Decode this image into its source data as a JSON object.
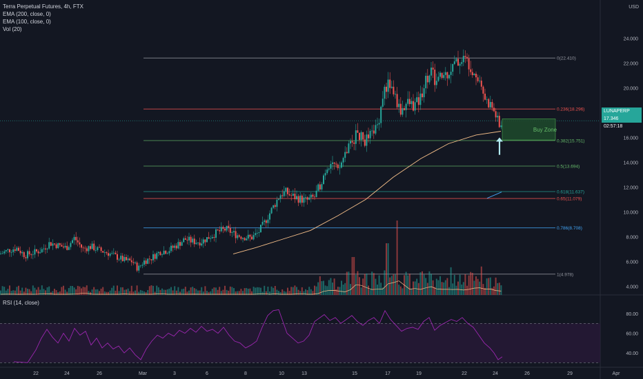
{
  "header": {
    "symbol_line": "Terra Perpetual Futures, 4h, FTX",
    "indicators": [
      "EMA (200, close, 0)",
      "EMA (100, close, 0)",
      "Vol (20)"
    ],
    "rsi_label": "RSI (14, close)",
    "currency": "USD"
  },
  "price_tag": {
    "symbol": "LUNAPERP",
    "price": "17.346",
    "countdown": "02:57:18",
    "color": "#26a69a"
  },
  "colors": {
    "up": "#26a69a",
    "down": "#ef5350",
    "ema": "#f7c08a",
    "rsi_line": "#9c27b0",
    "rsi_band": "#2a1a3a",
    "buy_zone": "#1e4a2c"
  },
  "chart_data": [
    {
      "type": "line",
      "title": "Terra Perpetual Futures, 4h, FTX",
      "x_ticks": [
        "22",
        "24",
        "26",
        "Mar",
        "3",
        "6",
        "8",
        "10",
        "13",
        "15",
        "17",
        "19",
        "22",
        "24",
        "26",
        "29",
        "Apr"
      ],
      "y_ticks": [
        4.0,
        6.0,
        8.0,
        10.0,
        12.0,
        14.0,
        16.0,
        18.0,
        20.0,
        22.0,
        24.0
      ],
      "ylim": [
        3.3,
        25.7
      ],
      "price_path": [
        [
          0,
          6.6
        ],
        [
          12,
          6.9
        ],
        [
          24,
          7.1
        ],
        [
          36,
          6.5
        ],
        [
          48,
          6.7
        ],
        [
          60,
          6.9
        ],
        [
          72,
          7.5
        ],
        [
          84,
          7.3
        ],
        [
          96,
          7.1
        ],
        [
          108,
          7.9
        ],
        [
          120,
          7.0
        ],
        [
          132,
          7.2
        ],
        [
          144,
          6.9
        ],
        [
          156,
          6.7
        ],
        [
          168,
          6.4
        ],
        [
          180,
          6.1
        ],
        [
          192,
          6.0
        ],
        [
          200,
          5.4
        ],
        [
          208,
          6.0
        ],
        [
          220,
          6.3
        ],
        [
          232,
          6.8
        ],
        [
          244,
          6.9
        ],
        [
          256,
          7.3
        ],
        [
          268,
          7.8
        ],
        [
          280,
          7.6
        ],
        [
          292,
          7.6
        ],
        [
          304,
          8.0
        ],
        [
          316,
          8.4
        ],
        [
          328,
          8.6
        ],
        [
          340,
          8.2
        ],
        [
          352,
          8.0
        ],
        [
          364,
          7.9
        ],
        [
          374,
          8.3
        ],
        [
          382,
          9.0
        ],
        [
          390,
          9.8
        ],
        [
          398,
          10.6
        ],
        [
          406,
          11.4
        ],
        [
          414,
          11.6
        ],
        [
          422,
          11.3
        ],
        [
          432,
          11.1
        ],
        [
          444,
          10.9
        ],
        [
          456,
          11.2
        ],
        [
          464,
          12.2
        ],
        [
          472,
          13.4
        ],
        [
          480,
          14.2
        ],
        [
          490,
          13.2
        ],
        [
          500,
          14.7
        ],
        [
          510,
          15.6
        ],
        [
          518,
          16.4
        ],
        [
          528,
          15.7
        ],
        [
          538,
          16.2
        ],
        [
          548,
          17.1
        ],
        [
          556,
          19.8
        ],
        [
          564,
          20.4
        ],
        [
          572,
          19.4
        ],
        [
          580,
          18.1
        ],
        [
          590,
          18.8
        ],
        [
          600,
          18.6
        ],
        [
          608,
          19.0
        ],
        [
          616,
          20.5
        ],
        [
          624,
          21.5
        ],
        [
          632,
          20.4
        ],
        [
          640,
          20.9
        ],
        [
          648,
          21.2
        ],
        [
          656,
          21.7
        ],
        [
          664,
          22.1
        ],
        [
          672,
          22.4
        ],
        [
          680,
          22.0
        ],
        [
          688,
          21.3
        ],
        [
          696,
          20.5
        ],
        [
          704,
          19.0
        ],
        [
          712,
          18.6
        ],
        [
          720,
          17.6
        ],
        [
          724,
          16.7
        ],
        [
          728,
          17.35
        ]
      ],
      "ema_path": [
        [
          338,
          6.6
        ],
        [
          370,
          7.1
        ],
        [
          410,
          7.8
        ],
        [
          450,
          8.5
        ],
        [
          490,
          9.7
        ],
        [
          530,
          11.0
        ],
        [
          570,
          12.8
        ],
        [
          610,
          14.3
        ],
        [
          650,
          15.5
        ],
        [
          690,
          16.2
        ],
        [
          726,
          16.5
        ]
      ]
    },
    {
      "type": "table",
      "title": "Fibonacci retracement",
      "levels": [
        {
          "ratio": "0",
          "price": 22.41,
          "label": "0(22.410)",
          "color": "#9598a1"
        },
        {
          "ratio": "0.236",
          "price": 18.296,
          "label": "0.236(18.296)",
          "color": "#f05350"
        },
        {
          "ratio": "0.382",
          "price": 15.751,
          "label": "0.382(15.751)",
          "color": "#66bb6a"
        },
        {
          "ratio": "0.5",
          "price": 13.694,
          "label": "0.5(13.694)",
          "color": "#66bb6a"
        },
        {
          "ratio": "0.618",
          "price": 11.637,
          "label": "0.618(11.637)",
          "color": "#26a69a"
        },
        {
          "ratio": "0.65",
          "price": 11.079,
          "label": "0.65(11.079)",
          "color": "#f05350"
        },
        {
          "ratio": "0.786",
          "price": 8.708,
          "label": "0.786(8.708)",
          "color": "#42a5f5"
        },
        {
          "ratio": "1",
          "price": 4.978,
          "label": "1(4.978)",
          "color": "#9598a1"
        }
      ],
      "buy_zone": {
        "label": "Buy Zone",
        "top": 17.5,
        "bottom": 15.8
      }
    },
    {
      "type": "line",
      "title": "RSI (14, close)",
      "y_ticks": [
        40.0,
        60.0,
        80.0
      ],
      "ylim": [
        26,
        92
      ],
      "band": [
        30,
        70
      ],
      "rsi_path": [
        [
          20,
          31
        ],
        [
          40,
          30
        ],
        [
          52,
          43
        ],
        [
          60,
          55
        ],
        [
          68,
          64
        ],
        [
          76,
          56
        ],
        [
          84,
          50
        ],
        [
          92,
          60
        ],
        [
          100,
          52
        ],
        [
          108,
          65
        ],
        [
          116,
          58
        ],
        [
          124,
          62
        ],
        [
          132,
          48
        ],
        [
          140,
          55
        ],
        [
          148,
          45
        ],
        [
          156,
          50
        ],
        [
          164,
          44
        ],
        [
          172,
          47
        ],
        [
          180,
          40
        ],
        [
          188,
          45
        ],
        [
          196,
          38
        ],
        [
          204,
          33
        ],
        [
          212,
          44
        ],
        [
          220,
          52
        ],
        [
          228,
          58
        ],
        [
          236,
          55
        ],
        [
          244,
          60
        ],
        [
          252,
          57
        ],
        [
          260,
          63
        ],
        [
          268,
          60
        ],
        [
          276,
          65
        ],
        [
          284,
          61
        ],
        [
          292,
          67
        ],
        [
          300,
          62
        ],
        [
          308,
          64
        ],
        [
          316,
          60
        ],
        [
          324,
          66
        ],
        [
          332,
          58
        ],
        [
          340,
          52
        ],
        [
          348,
          50
        ],
        [
          356,
          45
        ],
        [
          364,
          48
        ],
        [
          372,
          52
        ],
        [
          380,
          66
        ],
        [
          388,
          78
        ],
        [
          396,
          83
        ],
        [
          404,
          84
        ],
        [
          410,
          72
        ],
        [
          416,
          60
        ],
        [
          424,
          55
        ],
        [
          432,
          50
        ],
        [
          440,
          52
        ],
        [
          448,
          58
        ],
        [
          456,
          72
        ],
        [
          462,
          75
        ],
        [
          470,
          79
        ],
        [
          478,
          73
        ],
        [
          486,
          76
        ],
        [
          494,
          70
        ],
        [
          502,
          74
        ],
        [
          510,
          78
        ],
        [
          518,
          72
        ],
        [
          526,
          68
        ],
        [
          534,
          73
        ],
        [
          542,
          76
        ],
        [
          550,
          70
        ],
        [
          558,
          83
        ],
        [
          566,
          74
        ],
        [
          574,
          68
        ],
        [
          582,
          62
        ],
        [
          590,
          65
        ],
        [
          598,
          66
        ],
        [
          606,
          64
        ],
        [
          614,
          72
        ],
        [
          622,
          76
        ],
        [
          630,
          63
        ],
        [
          638,
          68
        ],
        [
          646,
          71
        ],
        [
          654,
          74
        ],
        [
          662,
          72
        ],
        [
          670,
          76
        ],
        [
          678,
          70
        ],
        [
          686,
          66
        ],
        [
          694,
          58
        ],
        [
          702,
          50
        ],
        [
          710,
          45
        ],
        [
          716,
          40
        ],
        [
          722,
          33
        ],
        [
          728,
          36
        ]
      ]
    }
  ]
}
